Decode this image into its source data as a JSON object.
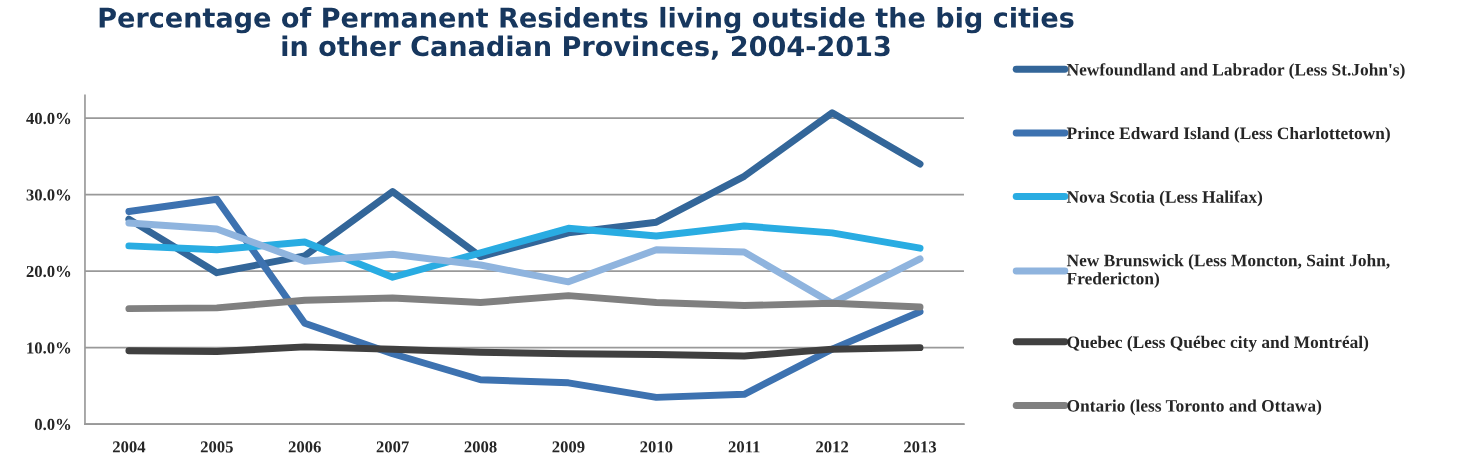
{
  "chart_data": {
    "type": "line",
    "title": "Percentage of Permanent Residents living outside the big cities\nin other Canadian Provinces, 2004-2013",
    "categories": [
      "2004",
      "2005",
      "2006",
      "2007",
      "2008",
      "2009",
      "2010",
      "2011",
      "2012",
      "2013"
    ],
    "series": [
      {
        "name": "Newfoundland and Labrador (Less St.John's)",
        "color": "#336699",
        "values": [
          26.8,
          19.8,
          22.0,
          30.4,
          21.9,
          25.0,
          26.4,
          32.4,
          40.7,
          34.0
        ]
      },
      {
        "name": "Prince Edward Island (Less Charlottetown)",
        "color": "#3d72b0",
        "values": [
          27.8,
          29.4,
          13.2,
          9.2,
          5.8,
          5.4,
          3.5,
          3.9,
          9.8,
          14.7
        ]
      },
      {
        "name": "Nova Scotia (Less Halifax)",
        "color": "#29ace2",
        "values": [
          23.3,
          22.8,
          23.8,
          19.2,
          22.4,
          25.6,
          24.6,
          25.9,
          25.0,
          23.0
        ]
      },
      {
        "name": "New Brunswick (Less Moncton, Saint John,\nFredericton)",
        "color": "#8fb4de",
        "values": [
          26.3,
          25.5,
          21.3,
          22.2,
          20.8,
          18.6,
          22.8,
          22.5,
          15.8,
          21.6
        ]
      },
      {
        "name": "Quebec (Less Québec city and Montréal)",
        "color": "#404040",
        "values": [
          9.6,
          9.5,
          10.1,
          9.8,
          9.4,
          9.2,
          9.1,
          8.9,
          9.8,
          10.0
        ]
      },
      {
        "name": "Ontario (less Toronto and Ottawa)",
        "color": "#808080",
        "values": [
          15.1,
          15.2,
          16.2,
          16.5,
          15.9,
          16.8,
          15.9,
          15.5,
          15.8,
          15.3
        ]
      }
    ],
    "ylim": [
      0,
      43
    ],
    "yticks": [
      {
        "value": 0,
        "label": "0.0%"
      },
      {
        "value": 10,
        "label": "10.0%"
      },
      {
        "value": 20,
        "label": "20.0%"
      },
      {
        "value": 30,
        "label": "30.0%"
      },
      {
        "value": 40,
        "label": "40.0%"
      }
    ],
    "grid": "y",
    "legend": "right",
    "marker": "none",
    "line_style": "solid"
  }
}
